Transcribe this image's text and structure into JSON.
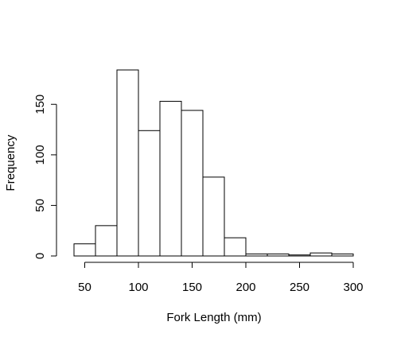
{
  "chart_data": {
    "type": "bar",
    "title": "",
    "xlabel": "Fork Length (mm)",
    "ylabel": "Frequency",
    "xlim": [
      40,
      300
    ],
    "ylim": [
      0,
      185
    ],
    "grid": false,
    "legend": "none",
    "bins": [
      {
        "x0": 40,
        "x1": 60,
        "count": 12
      },
      {
        "x0": 60,
        "x1": 80,
        "count": 30
      },
      {
        "x0": 80,
        "x1": 100,
        "count": 184
      },
      {
        "x0": 100,
        "x1": 120,
        "count": 124
      },
      {
        "x0": 120,
        "x1": 140,
        "count": 153
      },
      {
        "x0": 140,
        "x1": 160,
        "count": 144
      },
      {
        "x0": 160,
        "x1": 180,
        "count": 78
      },
      {
        "x0": 180,
        "x1": 200,
        "count": 18
      },
      {
        "x0": 200,
        "x1": 220,
        "count": 2
      },
      {
        "x0": 220,
        "x1": 240,
        "count": 2
      },
      {
        "x0": 240,
        "x1": 260,
        "count": 1
      },
      {
        "x0": 260,
        "x1": 280,
        "count": 3
      },
      {
        "x0": 280,
        "x1": 300,
        "count": 2
      }
    ],
    "xticks": [
      50,
      100,
      150,
      200,
      250,
      300
    ],
    "xtick_labels": [
      "50",
      "100",
      "150",
      "200",
      "250",
      "300"
    ],
    "yticks": [
      0,
      50,
      100,
      150
    ],
    "ytick_labels": [
      "0",
      "50",
      "100",
      "150"
    ],
    "colors": {
      "bar_fill": "#ffffff",
      "bar_stroke": "#000000",
      "axis": "#000000",
      "background": "#ffffff"
    }
  }
}
